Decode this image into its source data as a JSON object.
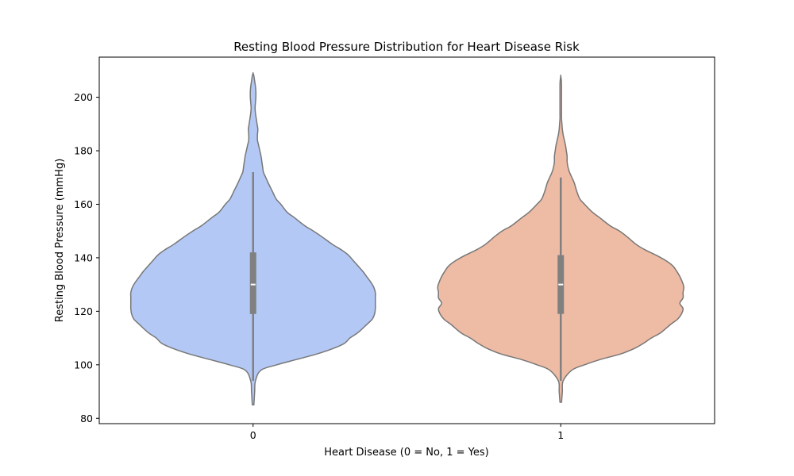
{
  "chart_data": {
    "type": "violin",
    "title": "Resting Blood Pressure Distribution for Heart Disease Risk",
    "xlabel": "Heart Disease (0 = No, 1 = Yes)",
    "ylabel": "Resting Blood Pressure (mmHg)",
    "categories": [
      "0",
      "1"
    ],
    "ylim": [
      78,
      215
    ],
    "yticks": [
      80,
      100,
      120,
      140,
      160,
      180,
      200
    ],
    "grid": false,
    "legend": "none",
    "colors": {
      "0": "#b3c8f4",
      "1": "#eebba5",
      "outline": "#777777",
      "box": "#808080",
      "median": "#ffffff"
    },
    "series": [
      {
        "category": "0",
        "density_max_halfwidth": 155,
        "density": [
          [
            85,
            1
          ],
          [
            90,
            2
          ],
          [
            94,
            3
          ],
          [
            98,
            10
          ],
          [
            100,
            30
          ],
          [
            102,
            55
          ],
          [
            104,
            80
          ],
          [
            106,
            100
          ],
          [
            108,
            115
          ],
          [
            110,
            122
          ],
          [
            112,
            132
          ],
          [
            115,
            143
          ],
          [
            117,
            150
          ],
          [
            119,
            153
          ],
          [
            121,
            154
          ],
          [
            123,
            154
          ],
          [
            125,
            154
          ],
          [
            127,
            154
          ],
          [
            129,
            152
          ],
          [
            131,
            148
          ],
          [
            133,
            143
          ],
          [
            135,
            138
          ],
          [
            137,
            132
          ],
          [
            139,
            126
          ],
          [
            141,
            120
          ],
          [
            143,
            111
          ],
          [
            145,
            100
          ],
          [
            148,
            86
          ],
          [
            150,
            76
          ],
          [
            152,
            65
          ],
          [
            155,
            52
          ],
          [
            157,
            43
          ],
          [
            160,
            35
          ],
          [
            162,
            29
          ],
          [
            165,
            24
          ],
          [
            168,
            19
          ],
          [
            170,
            16
          ],
          [
            172,
            13
          ],
          [
            174,
            12
          ],
          [
            176,
            11
          ],
          [
            178,
            10
          ],
          [
            180,
            8.5
          ],
          [
            182,
            7
          ],
          [
            184,
            5.5
          ],
          [
            186,
            5.5
          ],
          [
            188,
            6
          ],
          [
            190,
            5
          ],
          [
            192,
            4
          ],
          [
            194,
            3
          ],
          [
            196,
            2.5
          ],
          [
            198,
            3
          ],
          [
            200,
            3.5
          ],
          [
            202,
            3.5
          ],
          [
            204,
            3
          ],
          [
            206,
            2
          ],
          [
            208,
            1
          ],
          [
            209,
            0
          ]
        ],
        "whisker_low": 94,
        "q1": 119,
        "median": 130,
        "q3": 142,
        "whisker_high": 172
      },
      {
        "category": "1",
        "density_max_halfwidth": 155,
        "density": [
          [
            86,
            1
          ],
          [
            90,
            2
          ],
          [
            94,
            3
          ],
          [
            98,
            14
          ],
          [
            100,
            30
          ],
          [
            102,
            50
          ],
          [
            104,
            75
          ],
          [
            106,
            92
          ],
          [
            108,
            104
          ],
          [
            110,
            114
          ],
          [
            112,
            126
          ],
          [
            115,
            138
          ],
          [
            117,
            147
          ],
          [
            119,
            152
          ],
          [
            121,
            154
          ],
          [
            123,
            150
          ],
          [
            125,
            154
          ],
          [
            127,
            154
          ],
          [
            129,
            155
          ],
          [
            131,
            153
          ],
          [
            133,
            150
          ],
          [
            135,
            146
          ],
          [
            137,
            141
          ],
          [
            139,
            132
          ],
          [
            141,
            120
          ],
          [
            143,
            106
          ],
          [
            145,
            95
          ],
          [
            148,
            83
          ],
          [
            150,
            74
          ],
          [
            152,
            62
          ],
          [
            155,
            49
          ],
          [
            157,
            40
          ],
          [
            160,
            30
          ],
          [
            162,
            24
          ],
          [
            165,
            20
          ],
          [
            168,
            17
          ],
          [
            170,
            14
          ],
          [
            172,
            11
          ],
          [
            174,
            9
          ],
          [
            176,
            8
          ],
          [
            178,
            8
          ],
          [
            180,
            7
          ],
          [
            182,
            6
          ],
          [
            184,
            4.5
          ],
          [
            186,
            3
          ],
          [
            188,
            2
          ],
          [
            190,
            1.5
          ],
          [
            192,
            1
          ],
          [
            194,
            1
          ],
          [
            196,
            1
          ],
          [
            198,
            1
          ],
          [
            200,
            1
          ],
          [
            202,
            1
          ],
          [
            204,
            1
          ],
          [
            206,
            0.8
          ],
          [
            208,
            0
          ]
        ],
        "whisker_low": 94,
        "q1": 119,
        "median": 130,
        "q3": 141,
        "whisker_high": 170
      }
    ]
  }
}
